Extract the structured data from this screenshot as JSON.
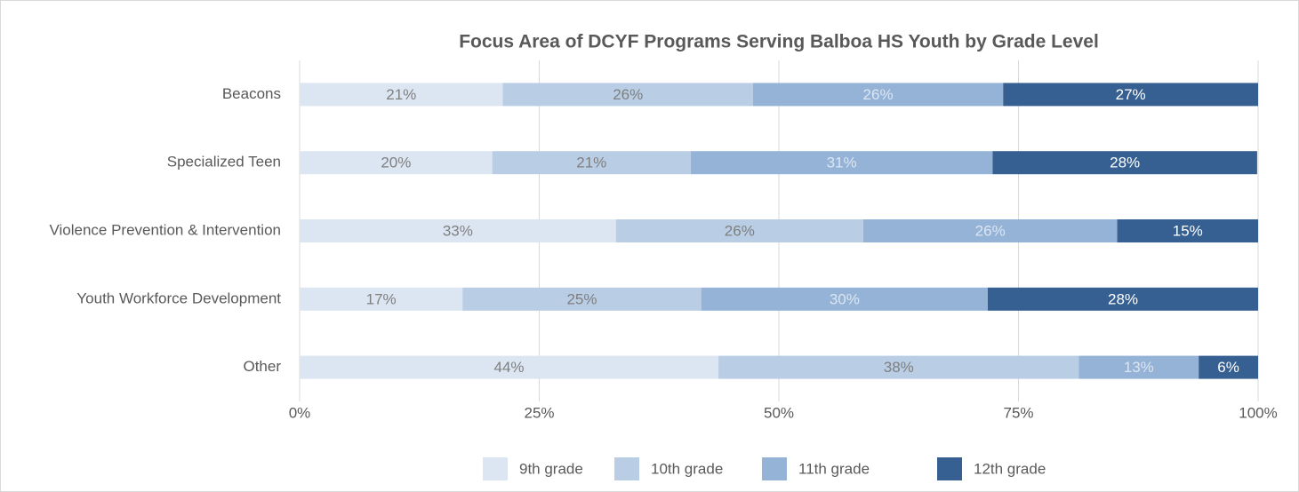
{
  "chart_data": {
    "type": "stacked_barh",
    "title": "Focus Area of DCYF Programs Serving Balboa HS Youth by Grade Level",
    "categories": [
      "Beacons",
      "Specialized Teen",
      "Violence Prevention & Intervention",
      "Youth Workforce Development",
      "Other"
    ],
    "series": [
      {
        "name": "9th grade",
        "color": "#dce6f2",
        "label_color": "#7f7f7f",
        "values": [
          21.2,
          20.1,
          33.0,
          17.0,
          43.7
        ],
        "value_labels": [
          "21%",
          "20%",
          "33%",
          "17%",
          "44%"
        ]
      },
      {
        "name": "10th grade",
        "color": "#b9cde5",
        "label_color": "#7f7f7f",
        "values": [
          26.1,
          20.7,
          25.8,
          24.9,
          37.6
        ],
        "value_labels": [
          "26%",
          "21%",
          "26%",
          "25%",
          "38%"
        ]
      },
      {
        "name": "11th grade",
        "color": "#95b3d7",
        "label_color": "#dce6f2",
        "values": [
          26.1,
          31.5,
          26.5,
          29.9,
          12.5
        ],
        "value_labels": [
          "26%",
          "31%",
          "26%",
          "30%",
          "13%"
        ]
      },
      {
        "name": "12th grade",
        "color": "#366092",
        "label_color": "#ffffff",
        "values": [
          26.6,
          27.6,
          14.7,
          28.2,
          6.2
        ],
        "value_labels": [
          "27%",
          "28%",
          "15%",
          "28%",
          "6%"
        ]
      }
    ],
    "xlim": [
      0,
      100
    ],
    "xticks": [
      {
        "value": 0,
        "label": "0%"
      },
      {
        "value": 25,
        "label": "25%"
      },
      {
        "value": 50,
        "label": "50%"
      },
      {
        "value": 75,
        "label": "75%"
      },
      {
        "value": 100,
        "label": "100%"
      }
    ],
    "grid": true,
    "legend": "bottom"
  }
}
